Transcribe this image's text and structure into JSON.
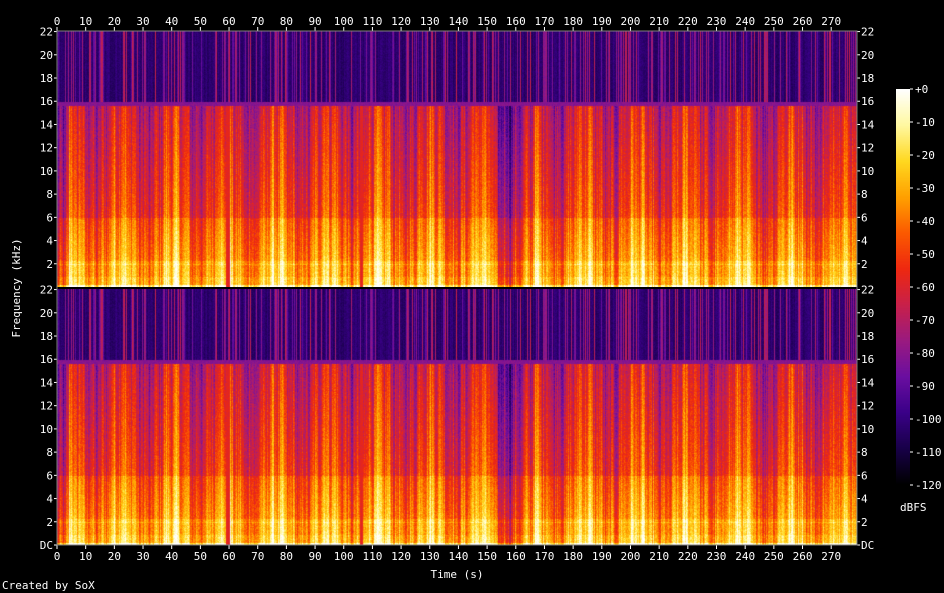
{
  "chart_data": {
    "type": "heatmap",
    "title": "",
    "xlabel": "Time (s)",
    "ylabel": "Frequency (kHz)",
    "x_ticks": [
      "0",
      "10",
      "20",
      "30",
      "40",
      "50",
      "60",
      "70",
      "80",
      "90",
      "100",
      "110",
      "120",
      "130",
      "140",
      "150",
      "160",
      "170",
      "180",
      "190",
      "200",
      "210",
      "220",
      "230",
      "240",
      "250",
      "260",
      "270"
    ],
    "xlim": [
      0,
      279
    ],
    "channels": [
      {
        "y_ticks": [
          "DC",
          "2",
          "4",
          "6",
          "8",
          "10",
          "12",
          "14",
          "16",
          "18",
          "20",
          "22"
        ]
      },
      {
        "y_ticks": [
          "DC",
          "2",
          "4",
          "6",
          "8",
          "10",
          "12",
          "14",
          "16",
          "18",
          "20",
          "22"
        ]
      }
    ],
    "ylim": [
      0,
      22.05
    ],
    "cutoff_khz": 16,
    "dropout_times": [
      59.5,
      106
    ],
    "colorbar": {
      "label": "dBFS",
      "ticks": [
        "+0",
        "-10",
        "-20",
        "-30",
        "-40",
        "-50",
        "-60",
        "-70",
        "-80",
        "-90",
        "-100",
        "-110",
        "-120"
      ],
      "range": [
        -120,
        0
      ],
      "colors": [
        "#000000",
        "#180048",
        "#3a0088",
        "#6a0ea0",
        "#9a1a80",
        "#c8204a",
        "#ee2810",
        "#fb5a00",
        "#ffa000",
        "#ffd820",
        "#fff8a0",
        "#ffffff"
      ]
    },
    "credit": "Created by SoX"
  }
}
